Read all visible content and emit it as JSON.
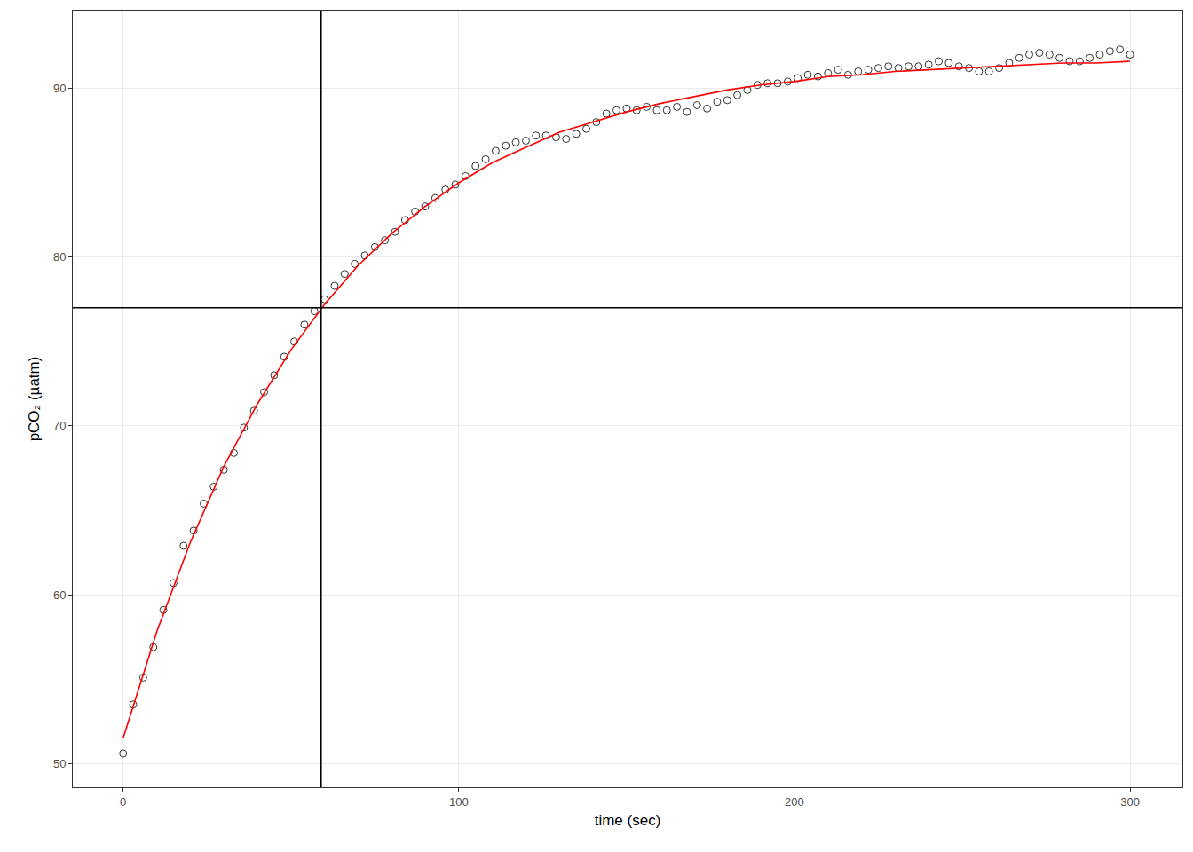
{
  "chart_data": {
    "type": "scatter",
    "x_label": "time (sec)",
    "y_label": "pCO₂ (µatm)",
    "xlim": [
      -15,
      315.6
    ],
    "ylim": [
      48.6,
      94.6
    ],
    "xticks": [
      0,
      100,
      200,
      300
    ],
    "yticks": [
      50,
      60,
      70,
      80,
      90
    ],
    "grid": true,
    "vlines": [
      59
    ],
    "hlines": [
      77
    ],
    "series": [
      {
        "type": "scatter",
        "marker": "circle-open",
        "color": "#000000",
        "x": [
          0,
          3,
          6,
          9,
          12,
          15,
          18,
          21,
          24,
          27,
          30,
          33,
          36,
          39,
          42,
          45,
          48,
          51,
          54,
          57,
          60,
          63,
          66,
          69,
          72,
          75,
          78,
          81,
          84,
          87,
          90,
          93,
          96,
          99,
          102,
          105,
          108,
          111,
          114,
          117,
          120,
          123,
          126,
          129,
          132,
          135,
          138,
          141,
          144,
          147,
          150,
          153,
          156,
          159,
          162,
          165,
          168,
          171,
          174,
          177,
          180,
          183,
          186,
          189,
          192,
          195,
          198,
          201,
          204,
          207,
          210,
          213,
          216,
          219,
          222,
          225,
          228,
          231,
          234,
          237,
          240,
          243,
          246,
          249,
          252,
          255,
          258,
          261,
          264,
          267,
          270,
          273,
          276,
          279,
          282,
          285,
          288,
          291,
          294,
          297,
          300
        ],
        "values": [
          50.6,
          53.5,
          55.1,
          56.9,
          59.1,
          60.7,
          62.9,
          63.8,
          65.4,
          66.4,
          67.4,
          68.4,
          69.9,
          70.9,
          72.0,
          73.0,
          74.1,
          75.0,
          76.0,
          76.8,
          77.5,
          78.3,
          79.0,
          79.6,
          80.1,
          80.6,
          81.0,
          81.5,
          82.2,
          82.7,
          83.0,
          83.5,
          84.0,
          84.3,
          84.8,
          85.4,
          85.8,
          86.3,
          86.6,
          86.8,
          86.9,
          87.2,
          87.2,
          87.1,
          87.0,
          87.3,
          87.6,
          88.0,
          88.5,
          88.7,
          88.8,
          88.7,
          88.9,
          88.7,
          88.7,
          88.9,
          88.6,
          89.0,
          88.8,
          89.2,
          89.3,
          89.6,
          89.9,
          90.2,
          90.3,
          90.3,
          90.4,
          90.6,
          90.8,
          90.7,
          90.9,
          91.1,
          90.8,
          91.0,
          91.1,
          91.2,
          91.3,
          91.2,
          91.3,
          91.3,
          91.4,
          91.6,
          91.5,
          91.3,
          91.2,
          91.0,
          91.0,
          91.2,
          91.5,
          91.8,
          92.0,
          92.1,
          92.0,
          91.8,
          91.6,
          91.6,
          91.8,
          92.0,
          92.2,
          92.3,
          92.0
        ]
      },
      {
        "type": "line",
        "line_style": "solid",
        "color": "#ff0000",
        "x": [
          0,
          10,
          20,
          30,
          40,
          50,
          60,
          70,
          80,
          90,
          100,
          110,
          120,
          130,
          140,
          150,
          160,
          170,
          180,
          190,
          200,
          210,
          220,
          230,
          240,
          250,
          260,
          270,
          280,
          290,
          300
        ],
        "values": [
          51.5,
          57.8,
          63.1,
          67.6,
          71.3,
          74.5,
          77.2,
          79.5,
          81.4,
          83.0,
          84.4,
          85.6,
          86.5,
          87.4,
          88.0,
          88.6,
          89.1,
          89.5,
          89.9,
          90.2,
          90.4,
          90.7,
          90.8,
          91.0,
          91.1,
          91.2,
          91.3,
          91.4,
          91.5,
          91.5,
          91.6
        ]
      }
    ]
  }
}
